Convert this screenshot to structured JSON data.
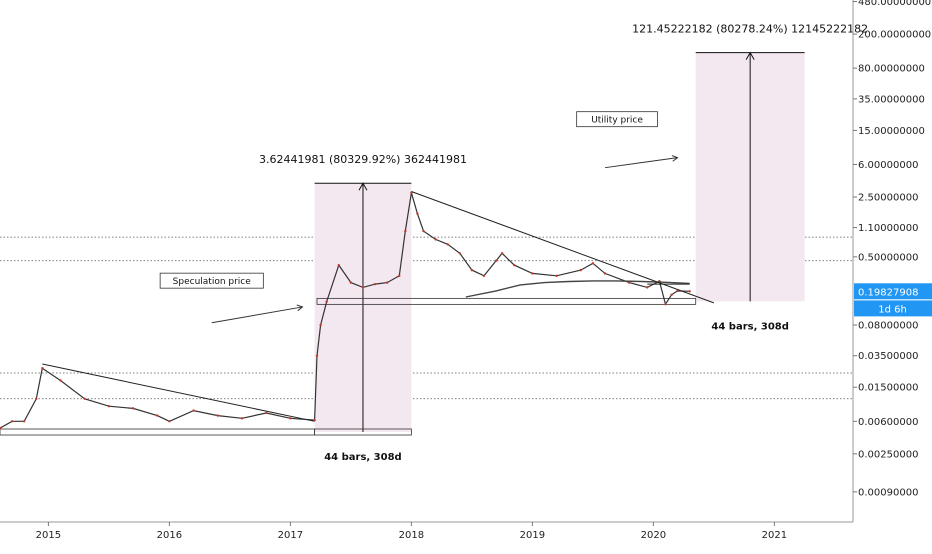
{
  "chart_data": {
    "type": "line",
    "title": "",
    "xlabel": "",
    "ylabel": "",
    "y_scale": "log",
    "ylim": [
      0.0004,
      500
    ],
    "xlim": [
      2014.6,
      2021.65
    ],
    "x_ticks": [
      {
        "label": "2015",
        "value": 2015.0
      },
      {
        "label": "2016",
        "value": 2016.0
      },
      {
        "label": "2017",
        "value": 2017.0
      },
      {
        "label": "2018",
        "value": 2018.0
      },
      {
        "label": "2019",
        "value": 2019.0
      },
      {
        "label": "2020",
        "value": 2020.0
      },
      {
        "label": "2021",
        "value": 2021.0
      }
    ],
    "y_ticks": [
      {
        "label": "480.00000000",
        "value": 480
      },
      {
        "label": "200.00000000",
        "value": 200
      },
      {
        "label": "80.00000000",
        "value": 80
      },
      {
        "label": "35.00000000",
        "value": 35
      },
      {
        "label": "15.00000000",
        "value": 15
      },
      {
        "label": "6.00000000",
        "value": 6
      },
      {
        "label": "2.50000000",
        "value": 2.5
      },
      {
        "label": "1.10000000",
        "value": 1.1
      },
      {
        "label": "0.50000000",
        "value": 0.5
      },
      {
        "label": "0.08000000",
        "value": 0.08
      },
      {
        "label": "0.03500000",
        "value": 0.035
      },
      {
        "label": "0.01500000",
        "value": 0.015
      },
      {
        "label": "0.00600000",
        "value": 0.006
      },
      {
        "label": "0.00250000",
        "value": 0.0025
      },
      {
        "label": "0.00090000",
        "value": 0.0009
      }
    ],
    "price_marker": {
      "label": "0.19827908",
      "value": 0.198,
      "color": "#2196f3"
    },
    "timeframe_marker": {
      "label": "1d 6h",
      "value": 0.125,
      "color": "#2196f3"
    },
    "horizontal_levels": [
      0.85,
      0.45,
      0.022,
      0.011
    ],
    "series": [
      {
        "color": "#333333",
        "x": [
          2014.6,
          2014.7,
          2014.8,
          2014.9,
          2014.95,
          2015.1,
          2015.3,
          2015.5,
          2015.7,
          2015.9,
          2016.0,
          2016.2,
          2016.4,
          2016.6,
          2016.8,
          2017.0,
          2017.2,
          2017.22,
          2017.25,
          2017.3,
          2017.4,
          2017.5,
          2017.6,
          2017.7,
          2017.8,
          2017.9,
          2017.95,
          2018.0,
          2018.05,
          2018.1,
          2018.2,
          2018.3,
          2018.4,
          2018.5,
          2018.6,
          2018.7,
          2018.75,
          2018.85,
          2019.0,
          2019.2,
          2019.4,
          2019.5,
          2019.6,
          2019.8,
          2019.95,
          2020.05,
          2020.1,
          2020.15,
          2020.2,
          2020.3
        ],
        "y": [
          0.005,
          0.006,
          0.006,
          0.011,
          0.025,
          0.018,
          0.011,
          0.009,
          0.0085,
          0.007,
          0.006,
          0.008,
          0.007,
          0.0065,
          0.0075,
          0.0065,
          0.0062,
          0.035,
          0.08,
          0.15,
          0.4,
          0.25,
          0.22,
          0.24,
          0.25,
          0.3,
          1.0,
          2.8,
          1.6,
          1.0,
          0.8,
          0.7,
          0.55,
          0.35,
          0.3,
          0.45,
          0.55,
          0.4,
          0.32,
          0.3,
          0.35,
          0.42,
          0.32,
          0.25,
          0.22,
          0.26,
          0.14,
          0.18,
          0.2,
          0.198
        ]
      },
      {
        "color": "#444444",
        "x": [
          2018.45,
          2018.7,
          2018.9,
          2019.1,
          2019.3,
          2019.5,
          2019.7,
          2019.9,
          2020.1,
          2020.3
        ],
        "y": [
          0.17,
          0.2,
          0.235,
          0.25,
          0.258,
          0.262,
          0.262,
          0.258,
          0.252,
          0.245
        ]
      }
    ],
    "trendlines": [
      {
        "x": [
          2014.95,
          2017.2
        ],
        "y": [
          0.028,
          0.006
        ]
      },
      {
        "x": [
          2018.0,
          2020.5
        ],
        "y": [
          2.9,
          0.145
        ]
      },
      {
        "x": [
          2019.95,
          2020.3
        ],
        "y": [
          0.24,
          0.24
        ]
      }
    ],
    "ranges": [
      {
        "x": [
          2017.2,
          2018.0
        ],
        "y": [
          0.0045,
          3.62
        ],
        "label": "3.62441981 (80329.92%) 362441981",
        "bars_label": "44 bars, 308d"
      },
      {
        "x": [
          2020.35,
          2021.25
        ],
        "y": [
          0.151,
          121.45
        ],
        "label": "121.45222182 (80278.24%) 12145222182",
        "bars_label": "44 bars, 308d"
      }
    ],
    "range_bases": [
      {
        "x": [
          2014.6,
          2017.2
        ],
        "y": 0.0045
      },
      {
        "x": [
          2017.2,
          2018.0
        ],
        "y": 0.0045
      },
      {
        "x": [
          2017.22,
          2020.35
        ],
        "y": 0.151
      }
    ],
    "annotations": [
      {
        "text": "Speculation price",
        "x": 2016.35,
        "y": 0.26,
        "boxed": true
      },
      {
        "text": "Utility price",
        "x": 2019.7,
        "y": 20,
        "boxed": true
      }
    ],
    "arrows": [
      {
        "x": [
          2016.35,
          2017.1
        ],
        "y": [
          0.085,
          0.13
        ]
      },
      {
        "x": [
          2019.6,
          2020.2
        ],
        "y": [
          5.5,
          7.2
        ]
      }
    ]
  }
}
